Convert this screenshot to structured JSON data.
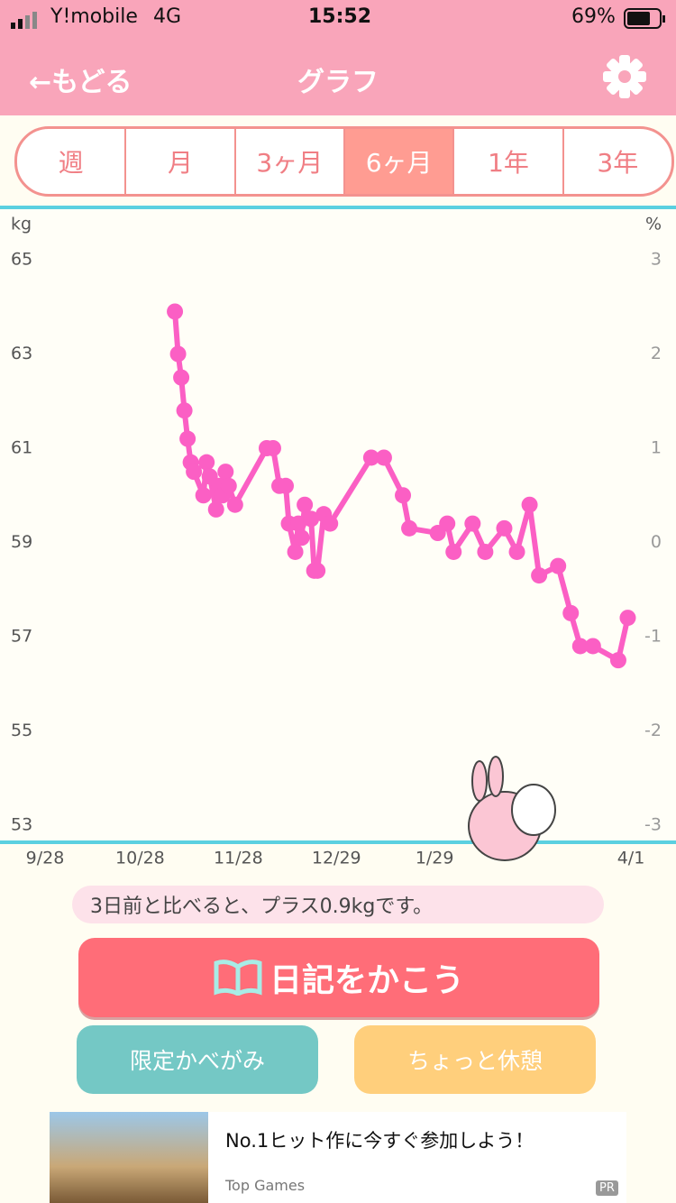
{
  "status_bar": {
    "carrier": "Y!mobile",
    "network": "4G",
    "time": "15:52",
    "battery": "69%"
  },
  "nav": {
    "back": "←もどる",
    "title": "グラフ"
  },
  "tabs": [
    "週",
    "月",
    "3ヶ月",
    "6ヶ月",
    "1年",
    "3年"
  ],
  "chart_data": {
    "type": "line",
    "y_label": "kg",
    "y2_label": "%",
    "ylim": [
      53,
      65
    ],
    "yticks": [
      65,
      63,
      61,
      59,
      57,
      55,
      53
    ],
    "y2lim": [
      -3,
      3
    ],
    "y2ticks": [
      3,
      2,
      1,
      0,
      -1,
      -2,
      -3
    ],
    "xticks": [
      "9/28",
      "10/28",
      "11/28",
      "12/29",
      "1/29",
      "4/1"
    ],
    "x": [
      "11/8",
      "11/9",
      "11/10",
      "11/11",
      "11/12",
      "11/13",
      "11/14",
      "11/17",
      "11/18",
      "11/19",
      "11/21",
      "11/22",
      "11/23",
      "11/24",
      "11/25",
      "11/27",
      "12/7",
      "12/9",
      "12/11",
      "12/13",
      "12/14",
      "12/16",
      "12/17",
      "12/18",
      "12/19",
      "12/21",
      "12/22",
      "12/23",
      "12/25",
      "12/27",
      "1/9",
      "1/13",
      "1/19",
      "1/21",
      "1/30",
      "2/2",
      "2/4",
      "2/10",
      "2/14",
      "2/20",
      "2/24",
      "2/28",
      "3/3",
      "3/9",
      "3/13",
      "3/16",
      "3/20",
      "3/28",
      "3/31"
    ],
    "series": [
      {
        "color": "#fb5fc4",
        "values": [
          63.9,
          63.0,
          62.5,
          61.8,
          61.2,
          60.7,
          60.5,
          60.0,
          60.7,
          60.4,
          59.7,
          60.2,
          60.0,
          60.5,
          60.2,
          59.8,
          61.0,
          61.0,
          60.2,
          60.2,
          59.4,
          58.8,
          59.4,
          59.1,
          59.8,
          59.5,
          58.4,
          58.4,
          59.6,
          59.4,
          60.8,
          60.8,
          60.0,
          59.3,
          59.2,
          59.4,
          58.8,
          59.4,
          58.8,
          59.3,
          58.8,
          59.8,
          58.3,
          58.5,
          57.5,
          56.8,
          56.8,
          56.5,
          57.4
        ]
      }
    ]
  },
  "message": "3日前と比べると、プラス0.9kgです。",
  "buttons": {
    "diary": "日記をかこう",
    "wallpaper": "限定かべがみ",
    "rest": "ちょっと休憩"
  },
  "ad": {
    "headline": "No.1ヒット作に今すぐ参加しよう！",
    "source": "Top Games",
    "badge": "PR"
  }
}
